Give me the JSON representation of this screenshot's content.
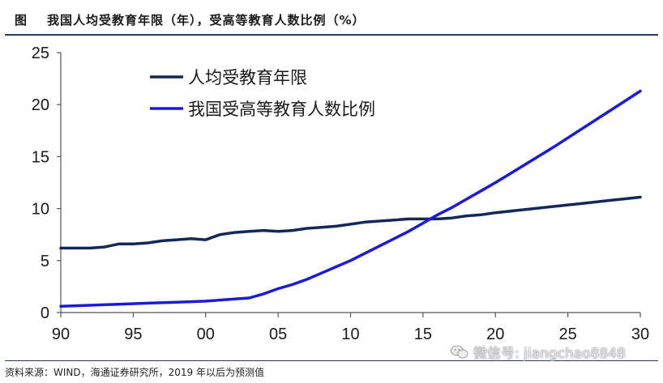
{
  "header": {
    "figure_label": "图",
    "title": "我国人均受教育年限（年），受高等教育人数比例（%）"
  },
  "footer": {
    "source": "资料来源：WIND，海通证券研究所，2019 年以后为预测值"
  },
  "watermark": {
    "text": "微信号: jiangchao8848",
    "icon": "wechat-icon"
  },
  "chart_data": {
    "type": "line",
    "title": "我国人均受教育年限（年），受高等教育人数比例（%）",
    "xlabel": "",
    "ylabel": "",
    "xlim": [
      1990,
      2030
    ],
    "ylim": [
      0,
      25
    ],
    "x_ticks": [
      1990,
      1995,
      2000,
      2005,
      2010,
      2015,
      2020,
      2025,
      2030
    ],
    "x_tick_labels": [
      "90",
      "95",
      "00",
      "05",
      "10",
      "15",
      "20",
      "25",
      "30"
    ],
    "y_ticks": [
      0,
      5,
      10,
      15,
      20,
      25
    ],
    "y_tick_labels": [
      "0",
      "5",
      "10",
      "15",
      "20",
      "25"
    ],
    "grid": false,
    "legend_position": "top-left",
    "series": [
      {
        "name": "人均受教育年限",
        "color": "#13285a",
        "x": [
          1990,
          1991,
          1992,
          1993,
          1994,
          1995,
          1996,
          1997,
          1998,
          1999,
          2000,
          2001,
          2002,
          2003,
          2004,
          2005,
          2006,
          2007,
          2008,
          2009,
          2010,
          2011,
          2012,
          2013,
          2014,
          2015,
          2016,
          2017,
          2018,
          2019,
          2020,
          2022,
          2024,
          2026,
          2028,
          2030
        ],
        "values": [
          6.2,
          6.2,
          6.2,
          6.3,
          6.6,
          6.6,
          6.7,
          6.9,
          7.0,
          7.1,
          7.0,
          7.5,
          7.7,
          7.8,
          7.9,
          7.8,
          7.9,
          8.1,
          8.2,
          8.3,
          8.5,
          8.7,
          8.8,
          8.9,
          9.0,
          9.0,
          9.0,
          9.1,
          9.3,
          9.4,
          9.6,
          9.9,
          10.2,
          10.5,
          10.8,
          11.1
        ]
      },
      {
        "name": "我国受高等教育人数比例",
        "color": "#1a1adf",
        "x": [
          1990,
          1992,
          1994,
          1996,
          1998,
          2000,
          2002,
          2003,
          2004,
          2005,
          2006,
          2007,
          2008,
          2009,
          2010,
          2011,
          2012,
          2013,
          2014,
          2015,
          2016,
          2017,
          2018,
          2019,
          2020,
          2022,
          2024,
          2026,
          2028,
          2030
        ],
        "values": [
          0.6,
          0.7,
          0.8,
          0.9,
          1.0,
          1.1,
          1.3,
          1.4,
          1.8,
          2.3,
          2.7,
          3.2,
          3.8,
          4.4,
          5.0,
          5.7,
          6.4,
          7.1,
          7.8,
          8.6,
          9.4,
          10.1,
          10.9,
          11.7,
          12.5,
          14.2,
          15.9,
          17.7,
          19.5,
          21.3
        ]
      }
    ]
  }
}
